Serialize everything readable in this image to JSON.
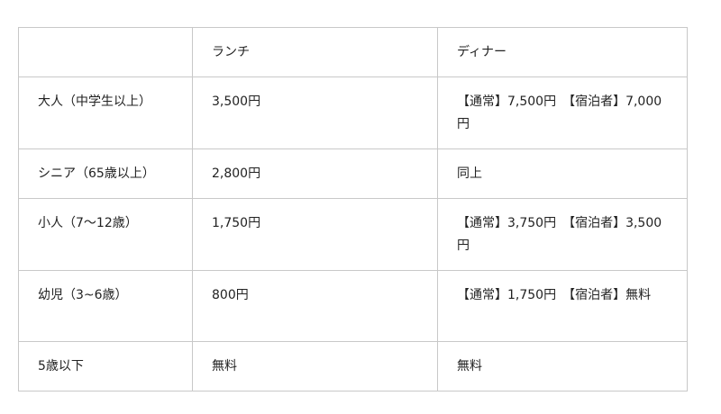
{
  "table": {
    "headers": [
      "",
      "ランチ",
      "ディナー"
    ],
    "rows": [
      [
        "大人（中学生以上）",
        "3,500円",
        "【通常】7,500円　【宿泊者】7,000円"
      ],
      [
        "シニア（65歳以上）",
        "2,800円",
        "同上"
      ],
      [
        "小人（7〜12歳）",
        "1,750円",
        "【通常】3,750円　【宿泊者】3,500円"
      ],
      [
        "幼児（3~6歳）",
        "800円",
        "【通常】1,750円　【宿泊者】無料"
      ],
      [
        "5歳以下",
        "無料",
        "無料"
      ]
    ]
  }
}
